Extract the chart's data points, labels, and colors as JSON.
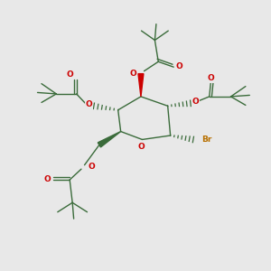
{
  "bg_color": "#e8e8e8",
  "bond_color": "#3a6b3a",
  "red_color": "#cc0000",
  "br_color": "#b87000",
  "fig_width": 3.0,
  "fig_height": 3.0,
  "xlim": [
    0,
    10
  ],
  "ylim": [
    0,
    10
  ]
}
